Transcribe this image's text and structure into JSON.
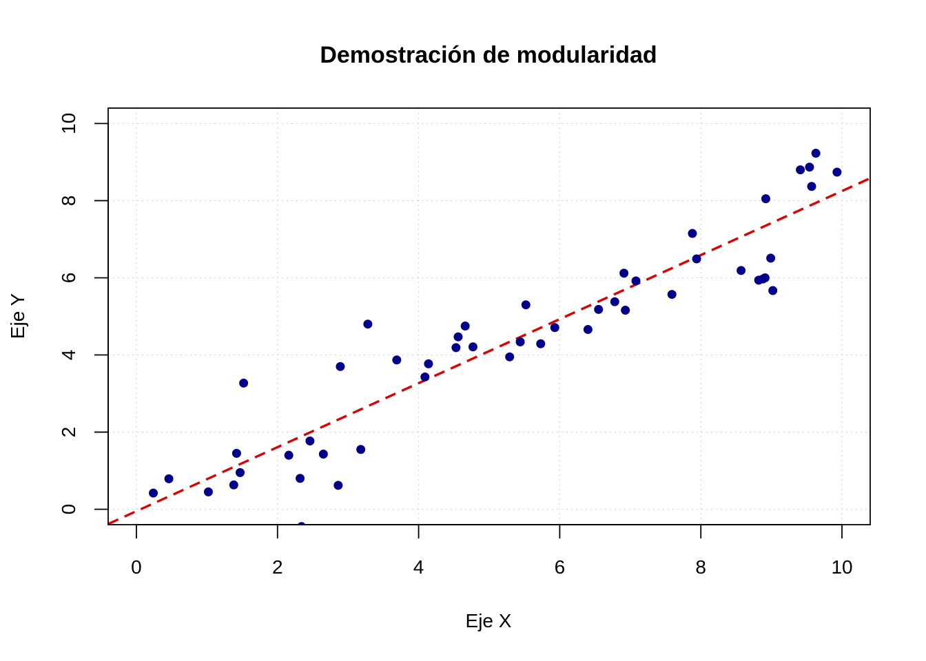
{
  "chart_data": {
    "type": "scatter",
    "title": "Demostración de modularidad",
    "xlabel": "Eje X",
    "ylabel": "Eje Y",
    "xlim": [
      -0.4,
      10.4
    ],
    "ylim": [
      -0.4,
      10.4
    ],
    "xticks": [
      0,
      2,
      4,
      6,
      8,
      10
    ],
    "yticks": [
      0,
      2,
      4,
      6,
      8,
      10
    ],
    "grid": true,
    "colors": {
      "points": "#00008B",
      "fit_line": "#e00000"
    },
    "series": [
      {
        "x": [
          0.24,
          0.46,
          1.02,
          1.38,
          1.42,
          1.47,
          1.52,
          2.16,
          2.32,
          2.34,
          2.46,
          2.65,
          2.86,
          2.89,
          3.18,
          3.28,
          3.69,
          4.09,
          4.14,
          4.53,
          4.56,
          4.66,
          4.77,
          5.29,
          5.44,
          5.52,
          5.73,
          5.93,
          6.4,
          6.55,
          6.78,
          6.91,
          6.93,
          7.08,
          7.59,
          7.88,
          7.94,
          8.57,
          8.82,
          8.88,
          8.91,
          8.92,
          8.99,
          9.02,
          9.41,
          9.54,
          9.57,
          9.63,
          9.93
        ],
        "y": [
          0.42,
          0.79,
          0.45,
          0.63,
          1.45,
          0.95,
          3.27,
          1.4,
          0.8,
          -0.45,
          1.77,
          1.43,
          0.62,
          3.7,
          1.55,
          4.8,
          3.87,
          3.43,
          3.77,
          4.19,
          4.47,
          4.75,
          4.21,
          3.95,
          4.34,
          5.3,
          4.29,
          4.71,
          4.66,
          5.18,
          5.38,
          6.12,
          5.16,
          5.92,
          5.57,
          7.15,
          6.49,
          6.19,
          5.94,
          5.97,
          6.0,
          8.05,
          6.51,
          5.67,
          8.8,
          8.87,
          8.37,
          9.23,
          8.74
        ]
      }
    ],
    "fit_line": {
      "intercept": -0.05,
      "slope": 0.83
    }
  }
}
